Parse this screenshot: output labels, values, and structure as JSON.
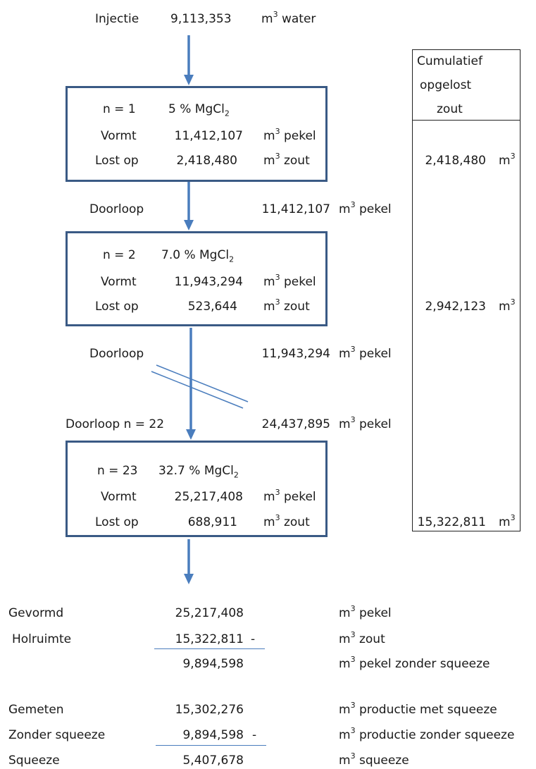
{
  "injection": {
    "label": "Injectie",
    "value": "9,113,353",
    "unit_word": "water"
  },
  "unit_base": "m",
  "unit_exp": "3",
  "cumulative_header": [
    "Cumulatief",
    "opgelost",
    "zout"
  ],
  "stages": [
    {
      "n_label": "n = 1",
      "conc_text": "5 % MgCl",
      "conc_sub": "2",
      "vormt_label": "Vormt",
      "vormt_value": "11,412,107",
      "vormt_unit": "pekel",
      "lostop_label": "Lost op",
      "lostop_value": "2,418,480",
      "lostop_unit": "zout",
      "cumulative": "2,418,480"
    },
    {
      "n_label": "n = 2",
      "conc_text": "7.0 % MgCl",
      "conc_sub": "2",
      "vormt_label": "Vormt",
      "vormt_value": "11,943,294",
      "vormt_unit": "pekel",
      "lostop_label": "Lost op",
      "lostop_value": "523,644",
      "lostop_unit": "zout",
      "cumulative": "2,942,123"
    },
    {
      "n_label": "n = 23",
      "conc_text": "32.7 % MgCl",
      "conc_sub": "2",
      "vormt_label": "Vormt",
      "vormt_value": "25,217,408",
      "vormt_unit": "pekel",
      "lostop_label": "Lost op",
      "lostop_value": "688,911",
      "lostop_unit": "zout",
      "cumulative": "15,322,811"
    }
  ],
  "throughflows": [
    {
      "label": "Doorloop",
      "value": "11,412,107",
      "unit": "pekel"
    },
    {
      "label": "Doorloop",
      "value": "11,943,294",
      "unit": "pekel"
    },
    {
      "label": "Doorloop n = 22",
      "value": "24,437,895",
      "unit": "pekel"
    }
  ],
  "summary1": [
    {
      "label": "Gevormd",
      "value": "25,217,408",
      "minus": "",
      "unit": "pekel"
    },
    {
      "label": "Holruimte",
      "value": "15,322,811",
      "minus": "-",
      "unit": "zout"
    },
    {
      "label": "",
      "value": "9,894,598",
      "minus": "",
      "unit": "pekel zonder squeeze"
    }
  ],
  "summary2": [
    {
      "label": "Gemeten",
      "value": "15,302,276",
      "minus": "",
      "unit": "productie met squeeze"
    },
    {
      "label": "Zonder squeeze",
      "value": "9,894,598",
      "minus": "-",
      "unit": "productie zonder squeeze"
    },
    {
      "label": "Squeeze",
      "value": "5,407,678",
      "minus": "",
      "unit": "squeeze"
    }
  ],
  "colors": {
    "box_border": "#3a5a85",
    "arrow": "#4a7dbd"
  }
}
